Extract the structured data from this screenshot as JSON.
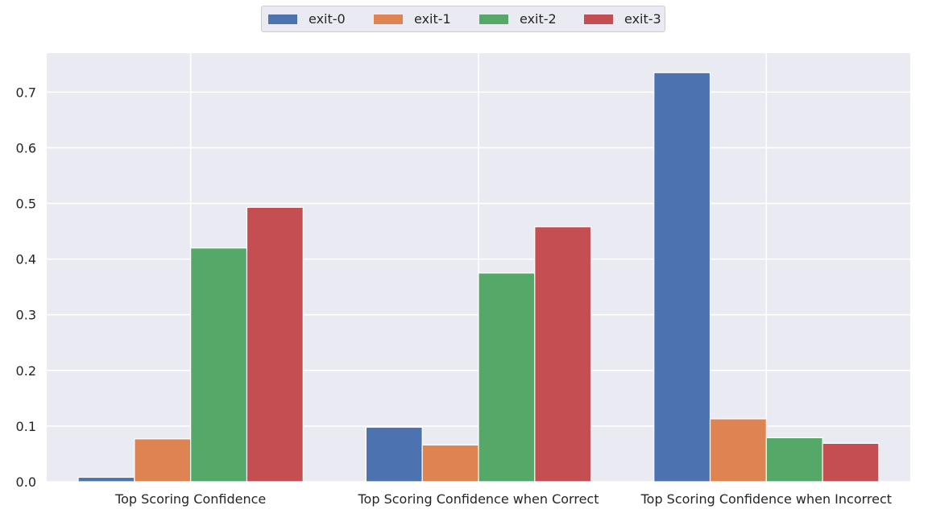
{
  "chart_data": {
    "type": "bar",
    "title": "",
    "xlabel": "",
    "ylabel": "",
    "categories": [
      "Top Scoring Confidence",
      "Top Scoring Confidence when Correct",
      "Top Scoring Confidence when Incorrect"
    ],
    "series": [
      {
        "name": "exit-0",
        "color": "#4c72b0",
        "values": [
          0.008,
          0.098,
          0.735
        ]
      },
      {
        "name": "exit-1",
        "color": "#dd8452",
        "values": [
          0.077,
          0.066,
          0.113
        ]
      },
      {
        "name": "exit-2",
        "color": "#55a868",
        "values": [
          0.42,
          0.375,
          0.079
        ]
      },
      {
        "name": "exit-3",
        "color": "#c44e52",
        "values": [
          0.493,
          0.458,
          0.069
        ]
      }
    ],
    "ylim": [
      0,
      0.77
    ],
    "yticks": [
      0.0,
      0.1,
      0.2,
      0.3,
      0.4,
      0.5,
      0.6,
      0.7
    ],
    "ytick_labels": [
      "0.0",
      "0.1",
      "0.2",
      "0.3",
      "0.4",
      "0.5",
      "0.6",
      "0.7"
    ],
    "grid": true,
    "legend": {
      "position": "top-center",
      "columns": 4
    },
    "colors": {
      "background": "#eaeaf2",
      "grid": "#ffffff"
    }
  }
}
